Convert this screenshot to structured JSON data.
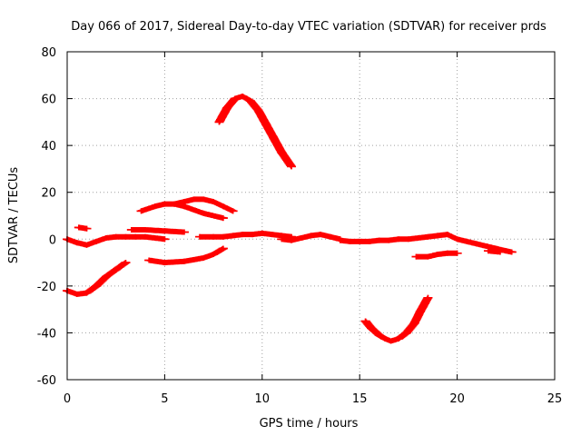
{
  "chart_data": {
    "type": "scatter",
    "title": "Day 066 of 2017, Sidereal Day-to-day VTEC variation (SDTVAR) for receiver prds",
    "xlabel": "GPS time / hours",
    "ylabel": "SDTVAR / TECUs",
    "xlim": [
      0,
      25
    ],
    "ylim": [
      -60,
      80
    ],
    "xticks": [
      0,
      5,
      10,
      15,
      20,
      25
    ],
    "yticks": [
      -60,
      -40,
      -20,
      0,
      20,
      40,
      60,
      80
    ],
    "grid": true,
    "marker": "plus",
    "color": "#ff0000",
    "series": [
      {
        "x": [
          0.0,
          0.5,
          1.0,
          1.5,
          2.0,
          2.5,
          3.0
        ],
        "y": [
          -22,
          -23.5,
          -23,
          -20,
          -16,
          -13,
          -10
        ]
      },
      {
        "x": [
          0.0,
          0.5,
          1.0,
          1.5,
          2.0,
          2.5,
          3.0,
          3.5,
          4.0,
          4.5,
          5.0
        ],
        "y": [
          0,
          -1.5,
          -2.5,
          -1,
          0.5,
          1,
          1,
          1,
          1,
          0.5,
          0
        ]
      },
      {
        "x": [
          0.6,
          1.0
        ],
        "y": [
          5,
          4.5
        ]
      },
      {
        "x": [
          3.3,
          4.0,
          5.0,
          6.0
        ],
        "y": [
          4,
          4,
          3.5,
          3
        ]
      },
      {
        "x": [
          3.8,
          4.5,
          5.0,
          5.5,
          6.0,
          7.0,
          8.0
        ],
        "y": [
          12,
          14,
          15,
          15,
          14,
          11,
          9
        ]
      },
      {
        "x": [
          5.5,
          6.0,
          6.5,
          7.0,
          7.5,
          8.0,
          8.5
        ],
        "y": [
          15,
          16,
          17,
          17,
          16,
          14,
          12
        ]
      },
      {
        "x": [
          4.2,
          5.0,
          6.0,
          7.0,
          7.5,
          8.0
        ],
        "y": [
          -9,
          -10,
          -9.5,
          -8,
          -6.5,
          -4
        ]
      },
      {
        "x": [
          6.8,
          7.5,
          8.0,
          8.5,
          9.0,
          9.5,
          10.0,
          10.5,
          11.0,
          11.5
        ],
        "y": [
          1,
          1,
          1,
          1.5,
          2,
          2,
          2.5,
          2,
          1.5,
          1
        ]
      },
      {
        "x": [
          11.0,
          11.5,
          12.0,
          12.5,
          13.0,
          13.5,
          14.0
        ],
        "y": [
          0,
          -0.5,
          0.5,
          1.5,
          2,
          1,
          0
        ]
      },
      {
        "x": [
          7.8,
          8.2,
          8.6,
          9.0,
          9.4,
          9.8,
          10.2,
          10.6,
          11.0,
          11.5
        ],
        "y": [
          50,
          56,
          60,
          61,
          59,
          55,
          49,
          43,
          37,
          31
        ]
      },
      {
        "x": [
          14.0,
          14.5,
          15.0,
          15.5,
          16.0,
          16.5,
          17.0,
          17.5,
          18.0,
          18.5,
          19.0,
          19.5,
          20.0,
          20.5,
          21.0,
          21.5
        ],
        "y": [
          -0.5,
          -1,
          -1,
          -1,
          -0.5,
          -0.5,
          0,
          0,
          0.5,
          1,
          1.5,
          2,
          0,
          -1,
          -2,
          -3
        ]
      },
      {
        "x": [
          21.5,
          22.0,
          22.5,
          22.8
        ],
        "y": [
          -3,
          -4,
          -5,
          -5.5
        ]
      },
      {
        "x": [
          21.6,
          22.2
        ],
        "y": [
          -5,
          -5.5
        ]
      },
      {
        "x": [
          15.3,
          15.6,
          16.0,
          16.3,
          16.6,
          17.0,
          17.4,
          17.8,
          18.1,
          18.5
        ],
        "y": [
          -35,
          -38,
          -41,
          -42.5,
          -43.5,
          -42.5,
          -40,
          -36,
          -31,
          -25
        ]
      },
      {
        "x": [
          17.9,
          18.5,
          19.0,
          19.5,
          20.0
        ],
        "y": [
          -7.5,
          -7.5,
          -6.5,
          -6,
          -6
        ]
      }
    ]
  }
}
